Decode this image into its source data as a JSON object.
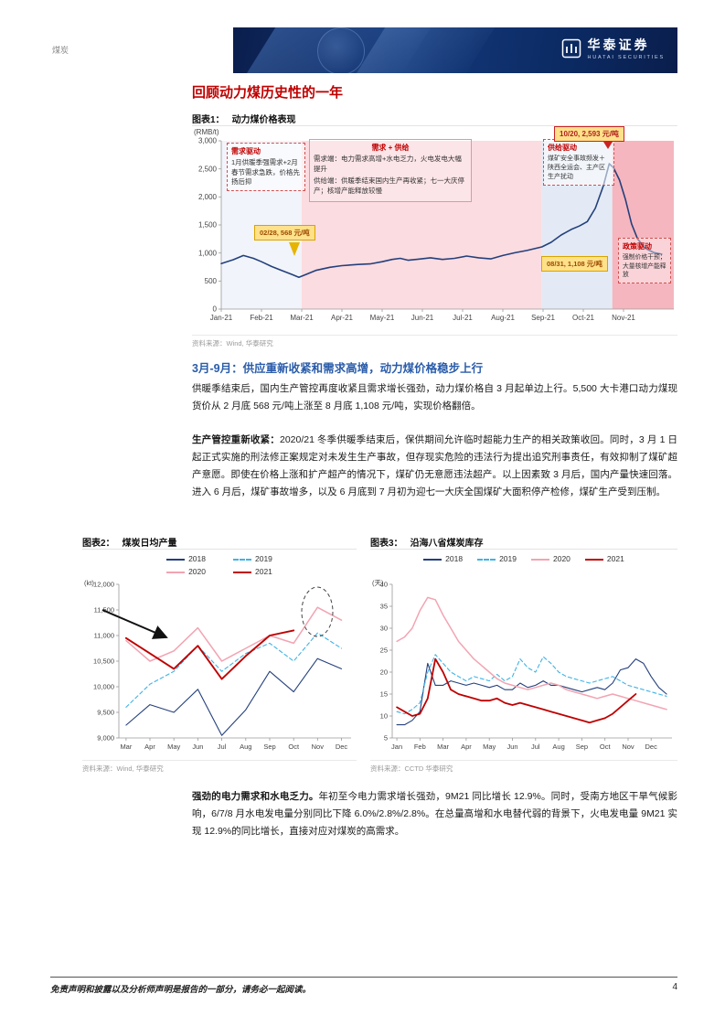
{
  "page": {
    "category": "煤炭",
    "page_number": "4",
    "disclaimer": "免责声明和披露以及分析师声明是报告的一部分，请务必一起阅读。"
  },
  "header": {
    "brand_cn": "华泰证券",
    "brand_en": "HUATAI SECURITIES"
  },
  "content": {
    "title": "回顾动力煤历史性的一年",
    "subheading": "3月-9月：供应重新收紧和需求高增，动力煤价格稳步上行",
    "para1": "供暖季结束后，国内生产管控再度收紧且需求增长强劲，动力煤价格自 3 月起单边上行。5,500 大卡港口动力煤现货价从 2 月底 568 元/吨上涨至 8 月底 1,108 元/吨，实现价格翻倍。",
    "para2_lead": "生产管控重新收紧：",
    "para2": "2020/21 冬季供暖季结束后，保供期间允许临时超能力生产的相关政策收回。同时，3 月 1 日起正式实施的刑法修正案规定对未发生生产事故，但存现实危险的违法行为提出追究刑事责任，有效抑制了煤矿超产意愿。即使在价格上涨和扩产超产的情况下，煤矿仍无意愿违法超产。以上因素致 3 月后，国内产量快速回落。进入 6 月后，煤矿事故增多，以及 6 月底到 7 月初为迎七一大庆全国煤矿大面积停产检修，煤矿生产受到压制。",
    "para3_lead": "强劲的电力需求和水电乏力。",
    "para3": "年初至今电力需求增长强劲，9M21 同比增长 12.9%。同时，受南方地区干旱气候影响，6/7/8 月水电发电量分别同比下降 6.0%/2.8%/2.8%。在总量高增和水电替代弱的背景下，火电发电量 9M21 实现 12.9%的同比增长，直接对应对煤炭的高需求。"
  },
  "figure1": {
    "label": "图表1：",
    "title": "动力煤价格表现",
    "source": "资料来源：Wind, 华泰研究",
    "annotations": {
      "demand": {
        "title": "需求驱动",
        "body": "1月供暖季强需求+2月春节需求急跌，价格先扬后抑"
      },
      "demand_supply": {
        "title": "需求 + 供给",
        "line1": "需求端：电力需求高增+水电乏力，火电发电大幅提升",
        "line2": "供给端：供暖季结束国内生产再收紧；七一大庆停产；核增产能释放较慢"
      },
      "supply": {
        "title": "供给驱动",
        "body": "煤矿安全事故频发＋陕西全运会、主产区生产扰动"
      },
      "policy": {
        "title": "政策驱动",
        "body": "强制价格干预；大量核增产能释放"
      },
      "tag_peak": "10/20, 2,593 元/吨",
      "tag_feb": "02/28, 568 元/吨",
      "tag_aug": "08/31, 1,108 元/吨"
    }
  },
  "figure2": {
    "label": "图表2：",
    "title": "煤炭日均产量",
    "source": "资料来源：Wind, 华泰研究"
  },
  "figure3": {
    "label": "图表3：",
    "title": "沿海八省煤炭库存",
    "source": "资料来源：CCTD 华泰研究"
  },
  "chart_data": [
    {
      "id": "chart1",
      "type": "line",
      "title": "动力煤价格表现",
      "ylabel": "(RMB/t)",
      "ylim": [
        0,
        3000
      ],
      "yticks": [
        0,
        500,
        1000,
        1500,
        2000,
        2500,
        3000
      ],
      "ytick_labels": [
        "0",
        "500",
        "1,000",
        "1,500",
        "2,000",
        "2,500",
        "3,000"
      ],
      "xlim": [
        0,
        11.25
      ],
      "x_step": 1,
      "xtick_pos": [
        0,
        1,
        2,
        3,
        4,
        5,
        6,
        7,
        8,
        9,
        10
      ],
      "xtick_labels": [
        "Jan-21",
        "Feb-21",
        "Mar-21",
        "Apr-21",
        "May-21",
        "Jun-21",
        "Jul-21",
        "Aug-21",
        "Sep-21",
        "Oct-21",
        "Nov-21"
      ],
      "bands": [
        {
          "from": 0,
          "to": 2,
          "color": "#f1f4fa"
        },
        {
          "from": 2,
          "to": 7.97,
          "color": "#fbdce0"
        },
        {
          "from": 7.97,
          "to": 9.72,
          "color": "#e3eaf5"
        },
        {
          "from": 9.72,
          "to": 11.25,
          "color": "#f5b6bf"
        }
      ],
      "series": [
        {
          "name": "动力煤价格",
          "color": "#24407c",
          "width": 1.6,
          "points": [
            [
              0,
              810
            ],
            [
              0.3,
              880
            ],
            [
              0.55,
              955
            ],
            [
              0.8,
              905
            ],
            [
              1.0,
              845
            ],
            [
              1.25,
              760
            ],
            [
              1.5,
              690
            ],
            [
              1.75,
              620
            ],
            [
              1.93,
              568
            ],
            [
              2.1,
              615
            ],
            [
              2.35,
              690
            ],
            [
              2.7,
              745
            ],
            [
              3.0,
              775
            ],
            [
              3.4,
              795
            ],
            [
              3.7,
              805
            ],
            [
              4.0,
              845
            ],
            [
              4.25,
              885
            ],
            [
              4.45,
              905
            ],
            [
              4.65,
              870
            ],
            [
              4.9,
              890
            ],
            [
              5.2,
              915
            ],
            [
              5.5,
              885
            ],
            [
              5.8,
              905
            ],
            [
              6.1,
              945
            ],
            [
              6.4,
              915
            ],
            [
              6.7,
              895
            ],
            [
              7.0,
              955
            ],
            [
              7.3,
              1005
            ],
            [
              7.6,
              1045
            ],
            [
              7.97,
              1108
            ],
            [
              8.2,
              1190
            ],
            [
              8.45,
              1320
            ],
            [
              8.7,
              1420
            ],
            [
              8.9,
              1480
            ],
            [
              9.1,
              1560
            ],
            [
              9.3,
              1800
            ],
            [
              9.5,
              2200
            ],
            [
              9.645,
              2593
            ],
            [
              9.75,
              2520
            ],
            [
              9.9,
              2300
            ],
            [
              10.05,
              1950
            ],
            [
              10.2,
              1520
            ],
            [
              10.35,
              1250
            ],
            [
              10.55,
              1080
            ],
            [
              10.75,
              1010
            ],
            [
              10.95,
              980
            ]
          ]
        }
      ]
    },
    {
      "id": "chart2",
      "type": "line",
      "title": "煤炭日均产量",
      "ylabel": "(kt)",
      "ylim": [
        9000,
        12000
      ],
      "yticks": [
        9000,
        9500,
        10000,
        10500,
        11000,
        11500,
        12000
      ],
      "ytick_labels": [
        "9,000",
        "9,500",
        "10,000",
        "10,500",
        "11,000",
        "11,500",
        "12,000"
      ],
      "xlim": [
        -0.3,
        9.4
      ],
      "x_step": 1,
      "xtick_pos": [
        0,
        1,
        2,
        3,
        4,
        5,
        6,
        7,
        8,
        9
      ],
      "xtick_labels": [
        "Mar",
        "Apr",
        "May",
        "Jun",
        "Jul",
        "Aug",
        "Sep",
        "Oct",
        "Nov",
        "Dec"
      ],
      "legend_position": "top",
      "series": [
        {
          "name": "2018",
          "color": "#24407c",
          "width": 1.1,
          "values": [
            9250,
            9650,
            9500,
            9950,
            9050,
            9550,
            10300,
            9900,
            10550,
            10350
          ]
        },
        {
          "name": "2019",
          "color": "#3fb3e6",
          "width": 1.1,
          "dash": "4 3",
          "values": [
            9600,
            10050,
            10300,
            10800,
            10300,
            10650,
            10850,
            10500,
            11050,
            10750
          ]
        },
        {
          "name": "2020",
          "color": "#f2a4b2",
          "width": 1.5,
          "values": [
            10900,
            10500,
            10700,
            11150,
            10500,
            10750,
            11000,
            10850,
            11550,
            11300
          ]
        },
        {
          "name": "2021",
          "color": "#bf0000",
          "width": 1.9,
          "values": [
            10950,
            10650,
            10350,
            10800,
            10150,
            10600,
            11000,
            11100,
            null,
            null
          ]
        }
      ]
    },
    {
      "id": "chart3",
      "type": "line",
      "title": "沿海八省煤炭库存",
      "ylabel": "(天)",
      "ylim": [
        5,
        40
      ],
      "yticks": [
        5,
        10,
        15,
        20,
        25,
        30,
        35,
        40
      ],
      "ytick_labels": [
        "5",
        "10",
        "15",
        "20",
        "25",
        "30",
        "35",
        "40"
      ],
      "xlim": [
        -0.2,
        11.9
      ],
      "x_step": 0.3333,
      "xtick_pos": [
        0,
        1,
        2,
        3,
        4,
        5,
        6,
        7,
        8,
        9,
        10,
        11
      ],
      "xtick_labels": [
        "Jan",
        "Feb",
        "Mar",
        "Apr",
        "May",
        "Jun",
        "Jul",
        "Aug",
        "Sep",
        "Oct",
        "Nov",
        "Dec"
      ],
      "legend_position": "top",
      "series": [
        {
          "name": "2018",
          "color": "#24407c",
          "width": 1.1,
          "values": [
            8,
            8,
            9,
            11,
            22,
            17,
            17,
            18,
            17.5,
            17,
            17.5,
            17,
            16.5,
            17,
            16,
            16,
            17.5,
            16.5,
            17,
            18,
            17,
            17,
            16.5,
            16,
            15.5,
            16,
            16.5,
            16,
            17.5,
            20.5,
            21,
            23,
            22,
            19,
            16.5,
            15
          ]
        },
        {
          "name": "2019",
          "color": "#3fb3e6",
          "width": 1.1,
          "dash": "4 3",
          "values": [
            11,
            10.5,
            11.5,
            13,
            20,
            24,
            22,
            20,
            19,
            18,
            19,
            18.5,
            18,
            19.5,
            18,
            19,
            23,
            21,
            20,
            23.5,
            22,
            20,
            19,
            18.5,
            18,
            17.5,
            18,
            18.5,
            19,
            18,
            17,
            16.5,
            16,
            15.5,
            15,
            14.5
          ]
        },
        {
          "name": "2020",
          "color": "#f2a4b2",
          "width": 1.5,
          "values": [
            27,
            28,
            30,
            34,
            37,
            36.5,
            33,
            30,
            27,
            25,
            23,
            21.5,
            20,
            18.5,
            17.5,
            17,
            16.5,
            16,
            16.5,
            17,
            17.5,
            17,
            16,
            15.5,
            15,
            14.5,
            14,
            14.5,
            15,
            14.5,
            14,
            13.5,
            13,
            12.5,
            12,
            11.5
          ]
        },
        {
          "name": "2021",
          "color": "#bf0000",
          "width": 1.8,
          "values": [
            12,
            11,
            10,
            10.5,
            14,
            23,
            20,
            16,
            15,
            14.5,
            14,
            13.5,
            13.5,
            14,
            13,
            12.5,
            13,
            12.5,
            12,
            11.5,
            11,
            10.5,
            10,
            9.5,
            9,
            8.5,
            9,
            9.5,
            10.5,
            12,
            13.5,
            15,
            null,
            null,
            null,
            null
          ]
        }
      ]
    }
  ]
}
